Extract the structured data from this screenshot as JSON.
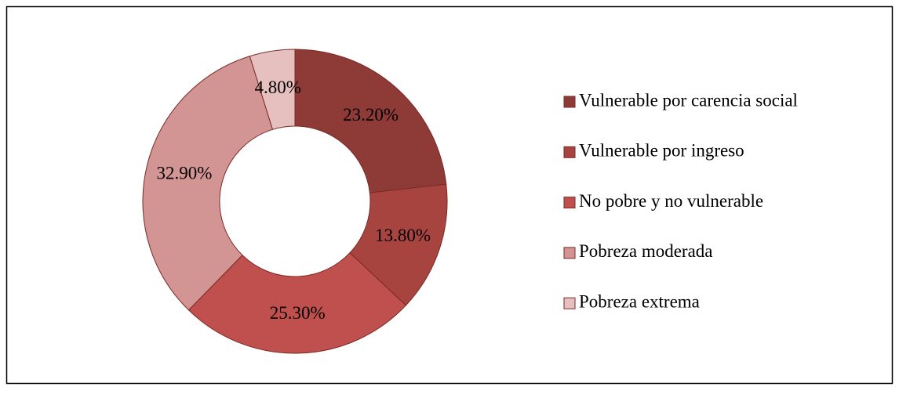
{
  "chart_data": {
    "type": "donut",
    "categories": [
      "Vulnerable por carencia social",
      "Vulnerable por ingreso",
      "No pobre y no vulnerable",
      "Pobreza moderada",
      "Pobreza extrema"
    ],
    "values": [
      23.2,
      13.8,
      25.3,
      32.9,
      4.8
    ],
    "value_labels": [
      "23.20%",
      "13.80%",
      "25.30%",
      "32.90%",
      "4.80%"
    ],
    "colors": [
      "#8e3b37",
      "#a8443f",
      "#c0504d",
      "#d39593",
      "#e6c0bf"
    ],
    "legend": "right"
  }
}
